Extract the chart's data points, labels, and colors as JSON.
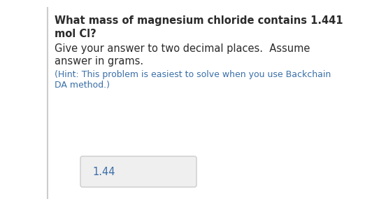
{
  "bg_color": "#ffffff",
  "left_border_color": "#cccccc",
  "question_line1": "What mass of magnesium chloride contains 1.441",
  "question_line2": "mol Cl?",
  "instruction_line1": "Give your answer to two decimal places.  Assume",
  "instruction_line2": "answer in grams.",
  "hint_line1": "(Hint: This problem is easiest to solve when you use Backchain",
  "hint_line2": "DA method.)",
  "answer": "1.44",
  "question_color": "#2b2b2b",
  "instruction_color": "#2b2b2b",
  "hint_color": "#3a6fa8",
  "answer_color": "#3a6fa8",
  "answer_box_facecolor": "#efefef",
  "answer_box_edgecolor": "#cccccc",
  "question_fontsize": 10.5,
  "instruction_fontsize": 10.5,
  "hint_fontsize": 9.0,
  "answer_fontsize": 10.5
}
